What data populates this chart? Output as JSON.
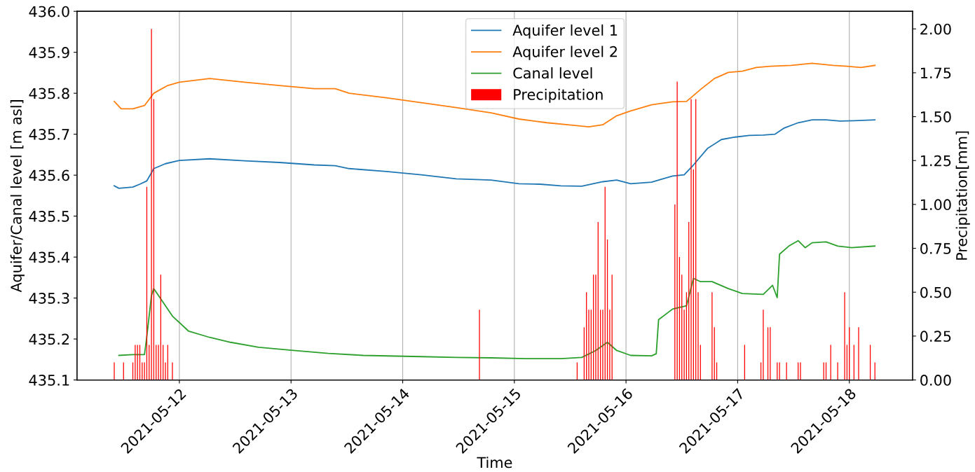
{
  "chart_data": {
    "type": "line",
    "xlabel": "Time",
    "ylabel": "Aquifer/Canal level [m asl]",
    "y2label": "Precipitation[mm]",
    "xlim": [
      "2021-05-11T02:00",
      "2021-05-18T13:36"
    ],
    "xticks": [
      "2021-05-12",
      "2021-05-13",
      "2021-05-14",
      "2021-05-15",
      "2021-05-16",
      "2021-05-17",
      "2021-05-18"
    ],
    "ylim": [
      435.1,
      436.0
    ],
    "yticks": [
      435.1,
      435.2,
      435.3,
      435.4,
      435.5,
      435.6,
      435.7,
      435.8,
      435.9,
      {
        "value": 436.0,
        "label": "436.0"
      }
    ],
    "y2lim": [
      0,
      2.1
    ],
    "y2ticks": [
      {
        "value": 0,
        "label": "0.00"
      },
      {
        "value": 0.25,
        "label": "0.25"
      },
      {
        "value": 0.5,
        "label": "0.50"
      },
      {
        "value": 0.75,
        "label": "0.75"
      },
      {
        "value": 1.0,
        "label": "1.00"
      },
      {
        "value": 1.25,
        "label": "1.25"
      },
      {
        "value": 1.5,
        "label": "1.50"
      },
      {
        "value": 1.75,
        "label": "1.75"
      },
      {
        "value": 2.0,
        "label": "2.00"
      }
    ],
    "grid": "x",
    "legend": "top",
    "line_style": "solid",
    "series": [
      {
        "name": "Aquifer level 1",
        "color": "#1f77b4",
        "x": [
          "2021-05-11T10:00",
          "2021-05-11T11:00",
          "2021-05-11T14:00",
          "2021-05-11T15:30",
          "2021-05-11T17:00",
          "2021-05-11T18:30",
          "2021-05-11T21:00",
          "2021-05-12T00:00",
          "2021-05-12T06:30",
          "2021-05-12T14:00",
          "2021-05-12T21:30",
          "2021-05-13T05:00",
          "2021-05-13T09:30",
          "2021-05-13T12:30",
          "2021-05-13T20:30",
          "2021-05-14T04:00",
          "2021-05-14T11:30",
          "2021-05-14T19:00",
          "2021-05-15T01:00",
          "2021-05-15T05:30",
          "2021-05-15T10:00",
          "2021-05-15T14:30",
          "2021-05-15T19:00",
          "2021-05-15T22:00",
          "2021-05-16T01:00",
          "2021-05-16T05:30",
          "2021-05-16T10:00",
          "2021-05-16T12:30",
          "2021-05-16T14:30",
          "2021-05-16T17:30",
          "2021-05-16T20:30",
          "2021-05-16T23:30",
          "2021-05-17T02:30",
          "2021-05-17T05:30",
          "2021-05-17T08:00",
          "2021-05-17T10:00",
          "2021-05-17T13:00",
          "2021-05-17T16:00",
          "2021-05-17T19:00",
          "2021-05-17T22:00",
          "2021-05-18T01:00",
          "2021-05-18T05:30"
        ],
        "values": [
          435.574,
          435.568,
          435.571,
          435.578,
          435.586,
          435.616,
          435.628,
          435.636,
          435.64,
          435.635,
          435.631,
          435.625,
          435.623,
          435.616,
          435.609,
          435.601,
          435.591,
          435.588,
          435.579,
          435.578,
          435.574,
          435.573,
          435.584,
          435.588,
          435.579,
          435.583,
          435.598,
          435.601,
          435.625,
          435.665,
          435.687,
          435.693,
          435.697,
          435.698,
          435.7,
          435.715,
          435.728,
          435.735,
          435.735,
          435.732,
          435.733,
          435.735
        ]
      },
      {
        "name": "Aquifer level 2",
        "color": "#ff7f0e",
        "x": [
          "2021-05-11T10:00",
          "2021-05-11T11:30",
          "2021-05-11T14:00",
          "2021-05-11T16:30",
          "2021-05-11T18:30",
          "2021-05-11T21:30",
          "2021-05-12T00:00",
          "2021-05-12T06:30",
          "2021-05-12T14:00",
          "2021-05-12T21:30",
          "2021-05-13T05:00",
          "2021-05-13T09:30",
          "2021-05-13T12:30",
          "2021-05-13T20:30",
          "2021-05-14T04:00",
          "2021-05-14T11:30",
          "2021-05-14T19:00",
          "2021-05-15T01:00",
          "2021-05-15T07:00",
          "2021-05-15T11:30",
          "2021-05-15T16:00",
          "2021-05-15T19:00",
          "2021-05-15T22:00",
          "2021-05-16T01:00",
          "2021-05-16T05:30",
          "2021-05-16T10:00",
          "2021-05-16T13:00",
          "2021-05-16T16:00",
          "2021-05-16T19:00",
          "2021-05-16T22:00",
          "2021-05-17T01:00",
          "2021-05-17T04:00",
          "2021-05-17T07:00",
          "2021-05-17T11:30",
          "2021-05-17T16:00",
          "2021-05-17T20:30",
          "2021-05-17T23:30",
          "2021-05-18T02:30",
          "2021-05-18T05:30"
        ],
        "values": [
          435.78,
          435.762,
          435.762,
          435.77,
          435.8,
          435.819,
          435.827,
          435.836,
          435.827,
          435.819,
          435.811,
          435.811,
          435.8,
          435.789,
          435.777,
          435.765,
          435.752,
          435.737,
          435.728,
          435.723,
          435.718,
          435.723,
          435.745,
          435.757,
          435.772,
          435.779,
          435.78,
          435.809,
          435.836,
          435.851,
          435.854,
          435.863,
          435.866,
          435.868,
          435.873,
          435.868,
          435.866,
          435.863,
          435.868
        ]
      },
      {
        "name": "Canal level",
        "color": "#2ca02c",
        "x": [
          "2021-05-11T11:00",
          "2021-05-11T14:00",
          "2021-05-11T16:30",
          "2021-05-11T17:00",
          "2021-05-11T18:00",
          "2021-05-11T18:30",
          "2021-05-11T20:00",
          "2021-05-11T22:30",
          "2021-05-12T02:00",
          "2021-05-12T06:30",
          "2021-05-12T11:00",
          "2021-05-12T17:00",
          "2021-05-13T00:30",
          "2021-05-13T08:00",
          "2021-05-13T15:30",
          "2021-05-14T04:00",
          "2021-05-14T11:30",
          "2021-05-14T19:00",
          "2021-05-15T02:30",
          "2021-05-15T10:00",
          "2021-05-15T14:30",
          "2021-05-15T17:30",
          "2021-05-15T20:00",
          "2021-05-15T22:00",
          "2021-05-16T01:00",
          "2021-05-16T05:30",
          "2021-05-16T06:30",
          "2021-05-16T07:00",
          "2021-05-16T10:00",
          "2021-05-16T13:00",
          "2021-05-16T14:30",
          "2021-05-16T16:00",
          "2021-05-16T18:30",
          "2021-05-16T22:00",
          "2021-05-17T01:00",
          "2021-05-17T05:30",
          "2021-05-17T07:30",
          "2021-05-17T08:30",
          "2021-05-17T09:00",
          "2021-05-17T11:00",
          "2021-05-17T13:00",
          "2021-05-17T14:30",
          "2021-05-17T16:00",
          "2021-05-17T19:00",
          "2021-05-17T21:30",
          "2021-05-18T00:30",
          "2021-05-18T05:30"
        ],
        "values": [
          435.16,
          435.162,
          435.162,
          435.206,
          435.306,
          435.323,
          435.298,
          435.256,
          435.219,
          435.204,
          435.192,
          435.18,
          435.172,
          435.165,
          435.16,
          435.157,
          435.155,
          435.154,
          435.152,
          435.152,
          435.155,
          435.172,
          435.192,
          435.172,
          435.16,
          435.159,
          435.164,
          435.247,
          435.273,
          435.281,
          435.348,
          435.34,
          435.34,
          435.323,
          435.311,
          435.309,
          435.331,
          435.301,
          435.407,
          435.427,
          435.44,
          435.423,
          435.435,
          435.437,
          435.427,
          435.423,
          435.427
        ]
      },
      {
        "name": "Precipitation",
        "color": "#ff0000",
        "type": "bar",
        "axis": "y2",
        "x": [
          "2021-05-11T10:00",
          "2021-05-11T12:00",
          "2021-05-11T14:00",
          "2021-05-11T14:30",
          "2021-05-11T15:00",
          "2021-05-11T15:30",
          "2021-05-11T16:00",
          "2021-05-11T16:30",
          "2021-05-11T17:00",
          "2021-05-11T17:30",
          "2021-05-11T18:00",
          "2021-05-11T18:30",
          "2021-05-11T19:00",
          "2021-05-11T19:30",
          "2021-05-11T20:00",
          "2021-05-11T20:30",
          "2021-05-11T21:00",
          "2021-05-11T21:30",
          "2021-05-11T22:30",
          "2021-05-14T16:30",
          "2021-05-15T13:30",
          "2021-05-15T15:00",
          "2021-05-15T15:30",
          "2021-05-15T16:00",
          "2021-05-15T16:30",
          "2021-05-15T17:00",
          "2021-05-15T17:30",
          "2021-05-15T18:00",
          "2021-05-15T18:30",
          "2021-05-15T19:00",
          "2021-05-15T19:30",
          "2021-05-15T20:00",
          "2021-05-15T20:30",
          "2021-05-15T21:00",
          "2021-05-16T10:30",
          "2021-05-16T11:00",
          "2021-05-16T11:30",
          "2021-05-16T12:00",
          "2021-05-16T12:30",
          "2021-05-16T13:00",
          "2021-05-16T13:30",
          "2021-05-16T14:00",
          "2021-05-16T14:30",
          "2021-05-16T15:00",
          "2021-05-16T15:30",
          "2021-05-16T16:00",
          "2021-05-16T18:30",
          "2021-05-16T19:00",
          "2021-05-16T19:30",
          "2021-05-17T01:30",
          "2021-05-17T05:00",
          "2021-05-17T05:30",
          "2021-05-17T06:30",
          "2021-05-17T07:00",
          "2021-05-17T08:30",
          "2021-05-17T09:00",
          "2021-05-17T10:30",
          "2021-05-17T13:00",
          "2021-05-17T13:30",
          "2021-05-17T18:30",
          "2021-05-17T19:00",
          "2021-05-17T20:00",
          "2021-05-17T21:30",
          "2021-05-17T23:00",
          "2021-05-17T23:30",
          "2021-05-18T00:00",
          "2021-05-18T01:00",
          "2021-05-18T02:00",
          "2021-05-18T04:30",
          "2021-05-18T05:30"
        ],
        "values": [
          0.1,
          0.1,
          0.1,
          0.2,
          0.2,
          0.2,
          0.1,
          0.1,
          1.1,
          0.2,
          2.0,
          1.6,
          0.2,
          0.2,
          0.6,
          0.2,
          0.1,
          0.2,
          0.1,
          0.4,
          0.1,
          0.3,
          0.5,
          0.4,
          0.4,
          0.6,
          0.6,
          0.9,
          0.4,
          0.4,
          1.1,
          0.8,
          0.4,
          0.6,
          1.0,
          1.7,
          0.7,
          0.6,
          0.4,
          0.5,
          0.9,
          1.6,
          1.2,
          1.6,
          0.5,
          0.2,
          0.5,
          0.3,
          0.1,
          0.2,
          0.1,
          0.4,
          0.3,
          0.3,
          0.1,
          0.1,
          0.1,
          0.1,
          0.1,
          0.1,
          0.1,
          0.2,
          0.1,
          0.5,
          0.2,
          0.3,
          0.2,
          0.3,
          0.2,
          0.1
        ]
      }
    ]
  }
}
